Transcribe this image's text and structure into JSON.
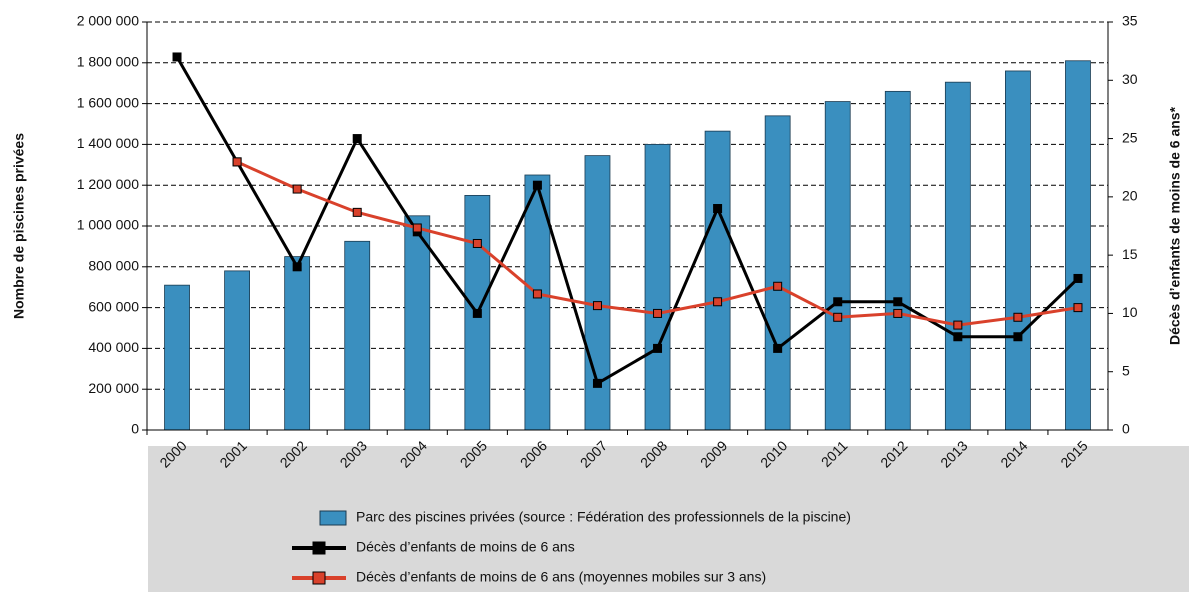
{
  "chart_data": {
    "type": "bar_line",
    "y_label": "Nombre de piscines privées",
    "y2_label": "Décès d’enfants de moins de 6 ans*",
    "categories": [
      "2000",
      "2001",
      "2002",
      "2003",
      "2004",
      "2005",
      "2006",
      "2007",
      "2008",
      "2009",
      "2010",
      "2011",
      "2012",
      "2013",
      "2014",
      "2015"
    ],
    "ylim": [
      0,
      2000000
    ],
    "yticks": [
      0,
      {
        "value": 200000,
        "label": "200 000"
      },
      {
        "value": 400000,
        "label": "400 000"
      },
      {
        "value": 600000,
        "label": "600 000"
      },
      {
        "value": 800000,
        "label": "800 000"
      },
      {
        "value": 1000000,
        "label": "1 000 000"
      },
      {
        "value": 1200000,
        "label": "1 200 000"
      },
      {
        "value": 1400000,
        "label": "1 400 000"
      },
      {
        "value": 1600000,
        "label": "1 600 000"
      },
      {
        "value": 1800000,
        "label": "1 800 000"
      },
      {
        "value": 2000000,
        "label": "2 000 000"
      }
    ],
    "y2lim": [
      0,
      35
    ],
    "y2ticks": [
      0,
      5,
      10,
      15,
      20,
      25,
      30,
      35
    ],
    "grid": true,
    "series": [
      {
        "name": "Parc des piscines privées (source : Fédération des professionnels de la piscine)",
        "type": "bar",
        "color": "#3a8fbf",
        "values": [
          710000,
          780000,
          850000,
          925000,
          1050000,
          1150000,
          1250000,
          1345000,
          1400000,
          1465000,
          1540000,
          1610000,
          1660000,
          1705000,
          1760000,
          1810000
        ]
      },
      {
        "name": "Décès d’enfants de moins de 6 ans",
        "type": "line",
        "axis": "y2",
        "color": "#000000",
        "values": [
          32,
          23,
          14,
          25,
          17,
          10,
          21,
          4,
          7,
          19,
          7,
          11,
          11,
          8,
          8,
          13
        ]
      },
      {
        "name": "Décès d’enfants de moins de 6 ans (moyennes mobiles sur 3 ans)",
        "type": "line",
        "axis": "y2",
        "color": "#d9412b",
        "values": [
          null,
          23,
          20.67,
          18.67,
          17.33,
          16,
          11.67,
          10.67,
          10,
          11,
          12.33,
          9.67,
          10,
          9,
          9.67,
          10.5
        ]
      }
    ]
  }
}
